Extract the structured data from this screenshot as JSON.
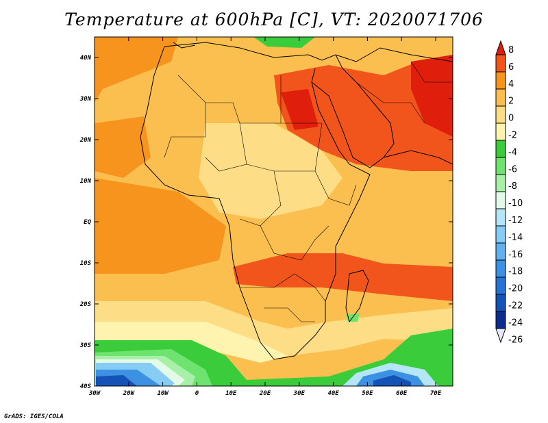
{
  "title": "Temperature at 600hPa [C], VT: 2020071706",
  "credit": "GrADS: IGES/COLA",
  "map": {
    "lat_labels": [
      "40N",
      "30N",
      "20N",
      "10N",
      "EQ",
      "10S",
      "20S",
      "30S",
      "40S"
    ],
    "lon_labels": [
      "30W",
      "20W",
      "10W",
      "0",
      "10E",
      "20E",
      "30E",
      "40E",
      "50E",
      "60E",
      "70E"
    ],
    "region": {
      "lon_range": [
        -30,
        75
      ],
      "lat_range": [
        -40,
        45
      ]
    }
  },
  "colorbar": {
    "labels": [
      "8",
      "6",
      "4",
      "2",
      "0",
      "-2",
      "-4",
      "-6",
      "-8",
      "-10",
      "-12",
      "-14",
      "-16",
      "-18",
      "-20",
      "-22",
      "-24",
      "-26"
    ],
    "colors": [
      "#e01e0c",
      "#f2551b",
      "#f7941d",
      "#fbbf4f",
      "#fddd86",
      "#fff3b0",
      "#3bcc3b",
      "#6fe36f",
      "#a8f0a8",
      "#e4fae8",
      "#b4e6f7",
      "#87ccf5",
      "#63b0ef",
      "#3d91e3",
      "#2573d4",
      "#1552b5",
      "#0b2d8c",
      "#0a1a66"
    ]
  }
}
